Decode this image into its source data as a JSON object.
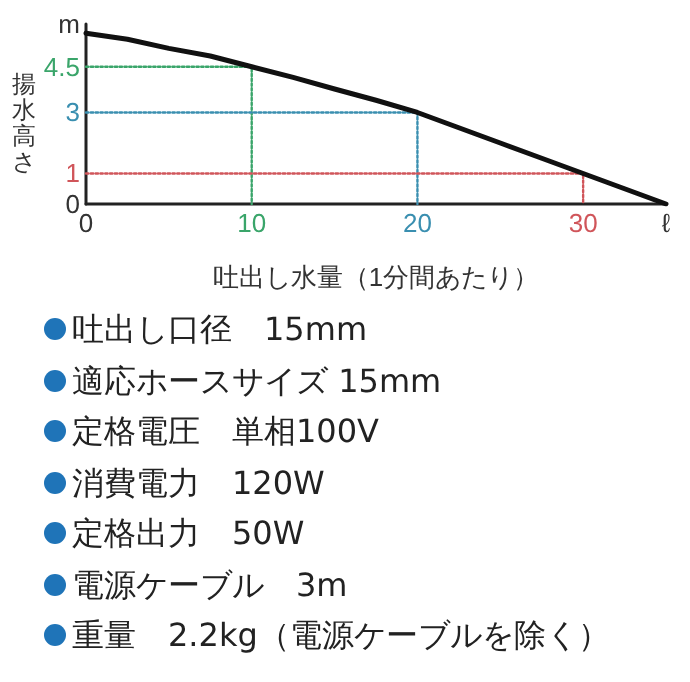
{
  "chart_data": {
    "type": "line",
    "xlabel": "吐出し水量（1分間あたり）",
    "ylabel": "揚水高さ",
    "xlim": [
      0,
      35
    ],
    "ylim": [
      0,
      5.9
    ],
    "xticks": [
      0,
      10,
      20,
      30,
      {
        "value": 35,
        "label": "ℓ"
      }
    ],
    "yticks": [
      0,
      1,
      3,
      4.5,
      {
        "value": 5.9,
        "label": "m"
      }
    ],
    "grid": false,
    "marker": "none",
    "series": [
      {
        "color": "#111111",
        "line_style": "solid",
        "x": [
          0,
          2.5,
          5,
          7.5,
          10,
          12.5,
          15,
          17.5,
          20,
          22.5,
          25,
          27.5,
          30,
          32.5,
          35
        ],
        "values": [
          5.6,
          5.4,
          5.1,
          4.85,
          4.5,
          4.15,
          3.77,
          3.4,
          3.0,
          2.5,
          2.0,
          1.5,
          1.0,
          0.5,
          0
        ]
      },
      {
        "color": "#3aa56a",
        "line_style": "dotted",
        "x": [
          0,
          10,
          10
        ],
        "values": [
          4.5,
          4.5,
          0
        ]
      },
      {
        "color": "#3a8fb0",
        "line_style": "dotted",
        "x": [
          0,
          20,
          20
        ],
        "values": [
          3,
          3,
          0
        ]
      },
      {
        "color": "#d0555a",
        "line_style": "dotted",
        "x": [
          0,
          30,
          30
        ],
        "values": [
          1,
          1,
          0
        ]
      }
    ],
    "annotations": [
      "吐出し口径　15mm",
      "適応ホースサイズ 15mm",
      "定格電圧　単相100V",
      "消費電力　120W",
      "定格出力　50W",
      "電源ケーブル　3m",
      "重量　2.2kg（電源ケーブルを除く）"
    ]
  }
}
